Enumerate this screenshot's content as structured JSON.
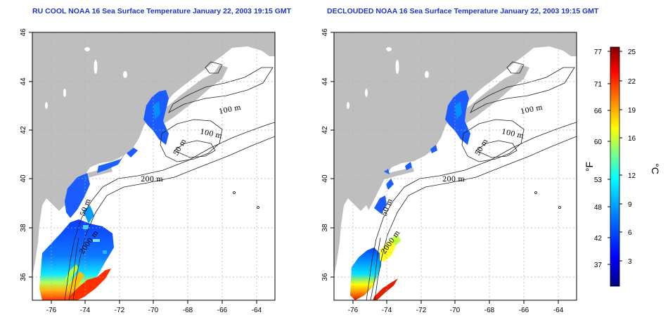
{
  "maps": [
    {
      "title": "RU COOL NOAA 16 Sea Surface Temperature January 22, 2003 19:15 GMT",
      "x_ticks": [
        "-76",
        "-74",
        "-72",
        "-70",
        "-68",
        "-66",
        "-64"
      ],
      "y_ticks": [
        "36",
        "38",
        "40",
        "42",
        "44",
        "46"
      ],
      "contour_labels": [
        "100 m",
        "100 m",
        "50 m",
        "200 m",
        "50 m",
        "2000 m"
      ]
    },
    {
      "title": "DECLOUDED NOAA 16 Sea Surface Temperature January 22, 2003 19:15 GMT",
      "x_ticks": [
        "-76",
        "-74",
        "-72",
        "-70",
        "-68",
        "-66",
        "-64"
      ],
      "y_ticks": [
        "36",
        "38",
        "40",
        "42",
        "44",
        "46"
      ],
      "contour_labels": [
        "100 m",
        "100 m",
        "50 m",
        "200 m",
        "50 m",
        "2000 m"
      ]
    }
  ],
  "colorbar": {
    "fahrenheit_label": "°F",
    "celsius_label": "°C",
    "fahrenheit_ticks": [
      "77",
      "71",
      "66",
      "60",
      "53",
      "48",
      "42",
      "37"
    ],
    "celsius_ticks": [
      "25",
      "22",
      "19",
      "16",
      "12",
      "9",
      "6",
      "3"
    ],
    "colors": [
      "#000080",
      "#0000ff",
      "#0080ff",
      "#00ffff",
      "#80ff80",
      "#ffff00",
      "#ff8000",
      "#ff0000",
      "#800000"
    ]
  },
  "colors": {
    "title": "#1f34c8",
    "land": "#bebebe",
    "grid": "#b0b0b0"
  }
}
